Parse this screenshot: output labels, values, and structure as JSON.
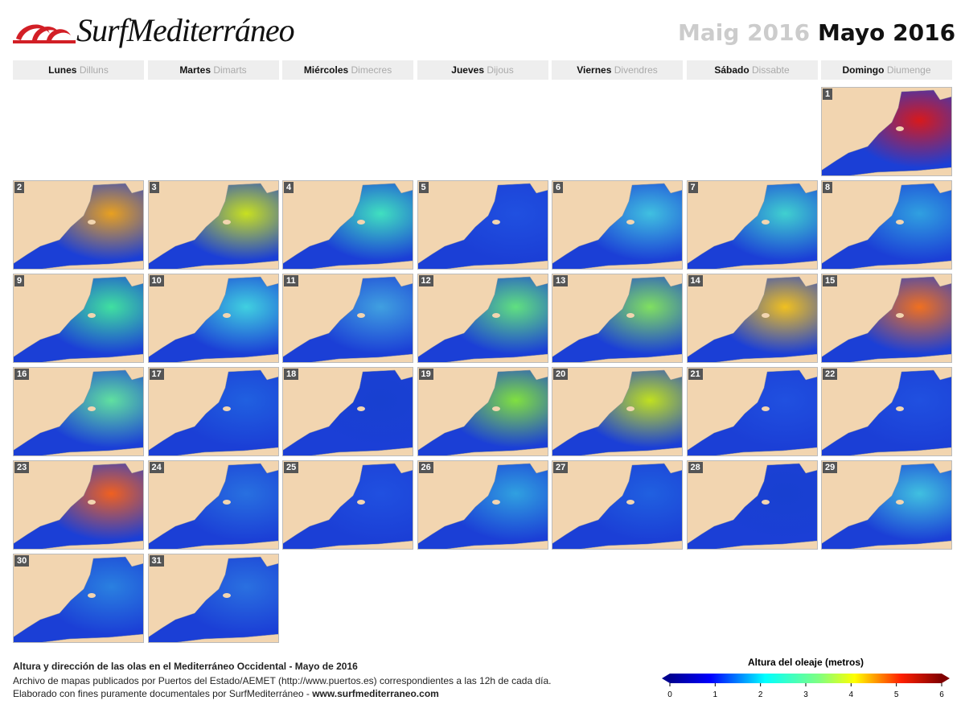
{
  "header": {
    "logo": "SurfMediterráneo",
    "month_ca": "Maig 2016",
    "month_es": "Mayo 2016"
  },
  "weekdays": [
    {
      "es": "Lunes",
      "ca": "Dilluns"
    },
    {
      "es": "Martes",
      "ca": "Dimarts"
    },
    {
      "es": "Miércoles",
      "ca": "Dimecres"
    },
    {
      "es": "Jueves",
      "ca": "Dijous"
    },
    {
      "es": "Viernes",
      "ca": "Divendres"
    },
    {
      "es": "Sábado",
      "ca": "Dissabte"
    },
    {
      "es": "Domingo",
      "ca": "Diumenge"
    }
  ],
  "days": [
    {
      "day": "1",
      "color": "#d7191c"
    },
    {
      "day": "2",
      "color": "#e8a020"
    },
    {
      "day": "3",
      "color": "#c8e020"
    },
    {
      "day": "4",
      "color": "#40e0c0"
    },
    {
      "day": "5",
      "color": "#2050e0"
    },
    {
      "day": "6",
      "color": "#40c0e0"
    },
    {
      "day": "7",
      "color": "#40d0d0"
    },
    {
      "day": "8",
      "color": "#30a0e0"
    },
    {
      "day": "9",
      "color": "#40e0a0"
    },
    {
      "day": "10",
      "color": "#40d0e0"
    },
    {
      "day": "11",
      "color": "#40a0e0"
    },
    {
      "day": "12",
      "color": "#60e080"
    },
    {
      "day": "13",
      "color": "#80e060"
    },
    {
      "day": "14",
      "color": "#f0c020"
    },
    {
      "day": "15",
      "color": "#f07020"
    },
    {
      "day": "16",
      "color": "#60e0a0"
    },
    {
      "day": "17",
      "color": "#2060e0"
    },
    {
      "day": "18",
      "color": "#1840d0"
    },
    {
      "day": "19",
      "color": "#80e040"
    },
    {
      "day": "20",
      "color": "#c0e020"
    },
    {
      "day": "21",
      "color": "#2050e0"
    },
    {
      "day": "22",
      "color": "#2050e0"
    },
    {
      "day": "23",
      "color": "#f06020"
    },
    {
      "day": "24",
      "color": "#2870e0"
    },
    {
      "day": "25",
      "color": "#2050e0"
    },
    {
      "day": "26",
      "color": "#30a0e0"
    },
    {
      "day": "27",
      "color": "#2060e0"
    },
    {
      "day": "28",
      "color": "#1840d0"
    },
    {
      "day": "29",
      "color": "#40c0e0"
    },
    {
      "day": "30",
      "color": "#2a80e0"
    },
    {
      "day": "31",
      "color": "#2a70e0"
    }
  ],
  "footer": {
    "title": "Altura y dirección de las olas en el Mediterráneo Occidental - Mayo de 2016",
    "source": "Archivo de mapas publicados por Puertos del Estado/AEMET (http://www.puertos.es) correspondientes a las 12h de cada día.",
    "credit": "Elaborado con fines puramente documentales por SurfMediterráneo - ",
    "website": "www.surfmediterraneo.com"
  },
  "colorbar": {
    "title": "Altura del oleaje (metros)",
    "ticks": [
      0,
      1,
      2,
      3,
      4,
      5,
      6
    ]
  }
}
